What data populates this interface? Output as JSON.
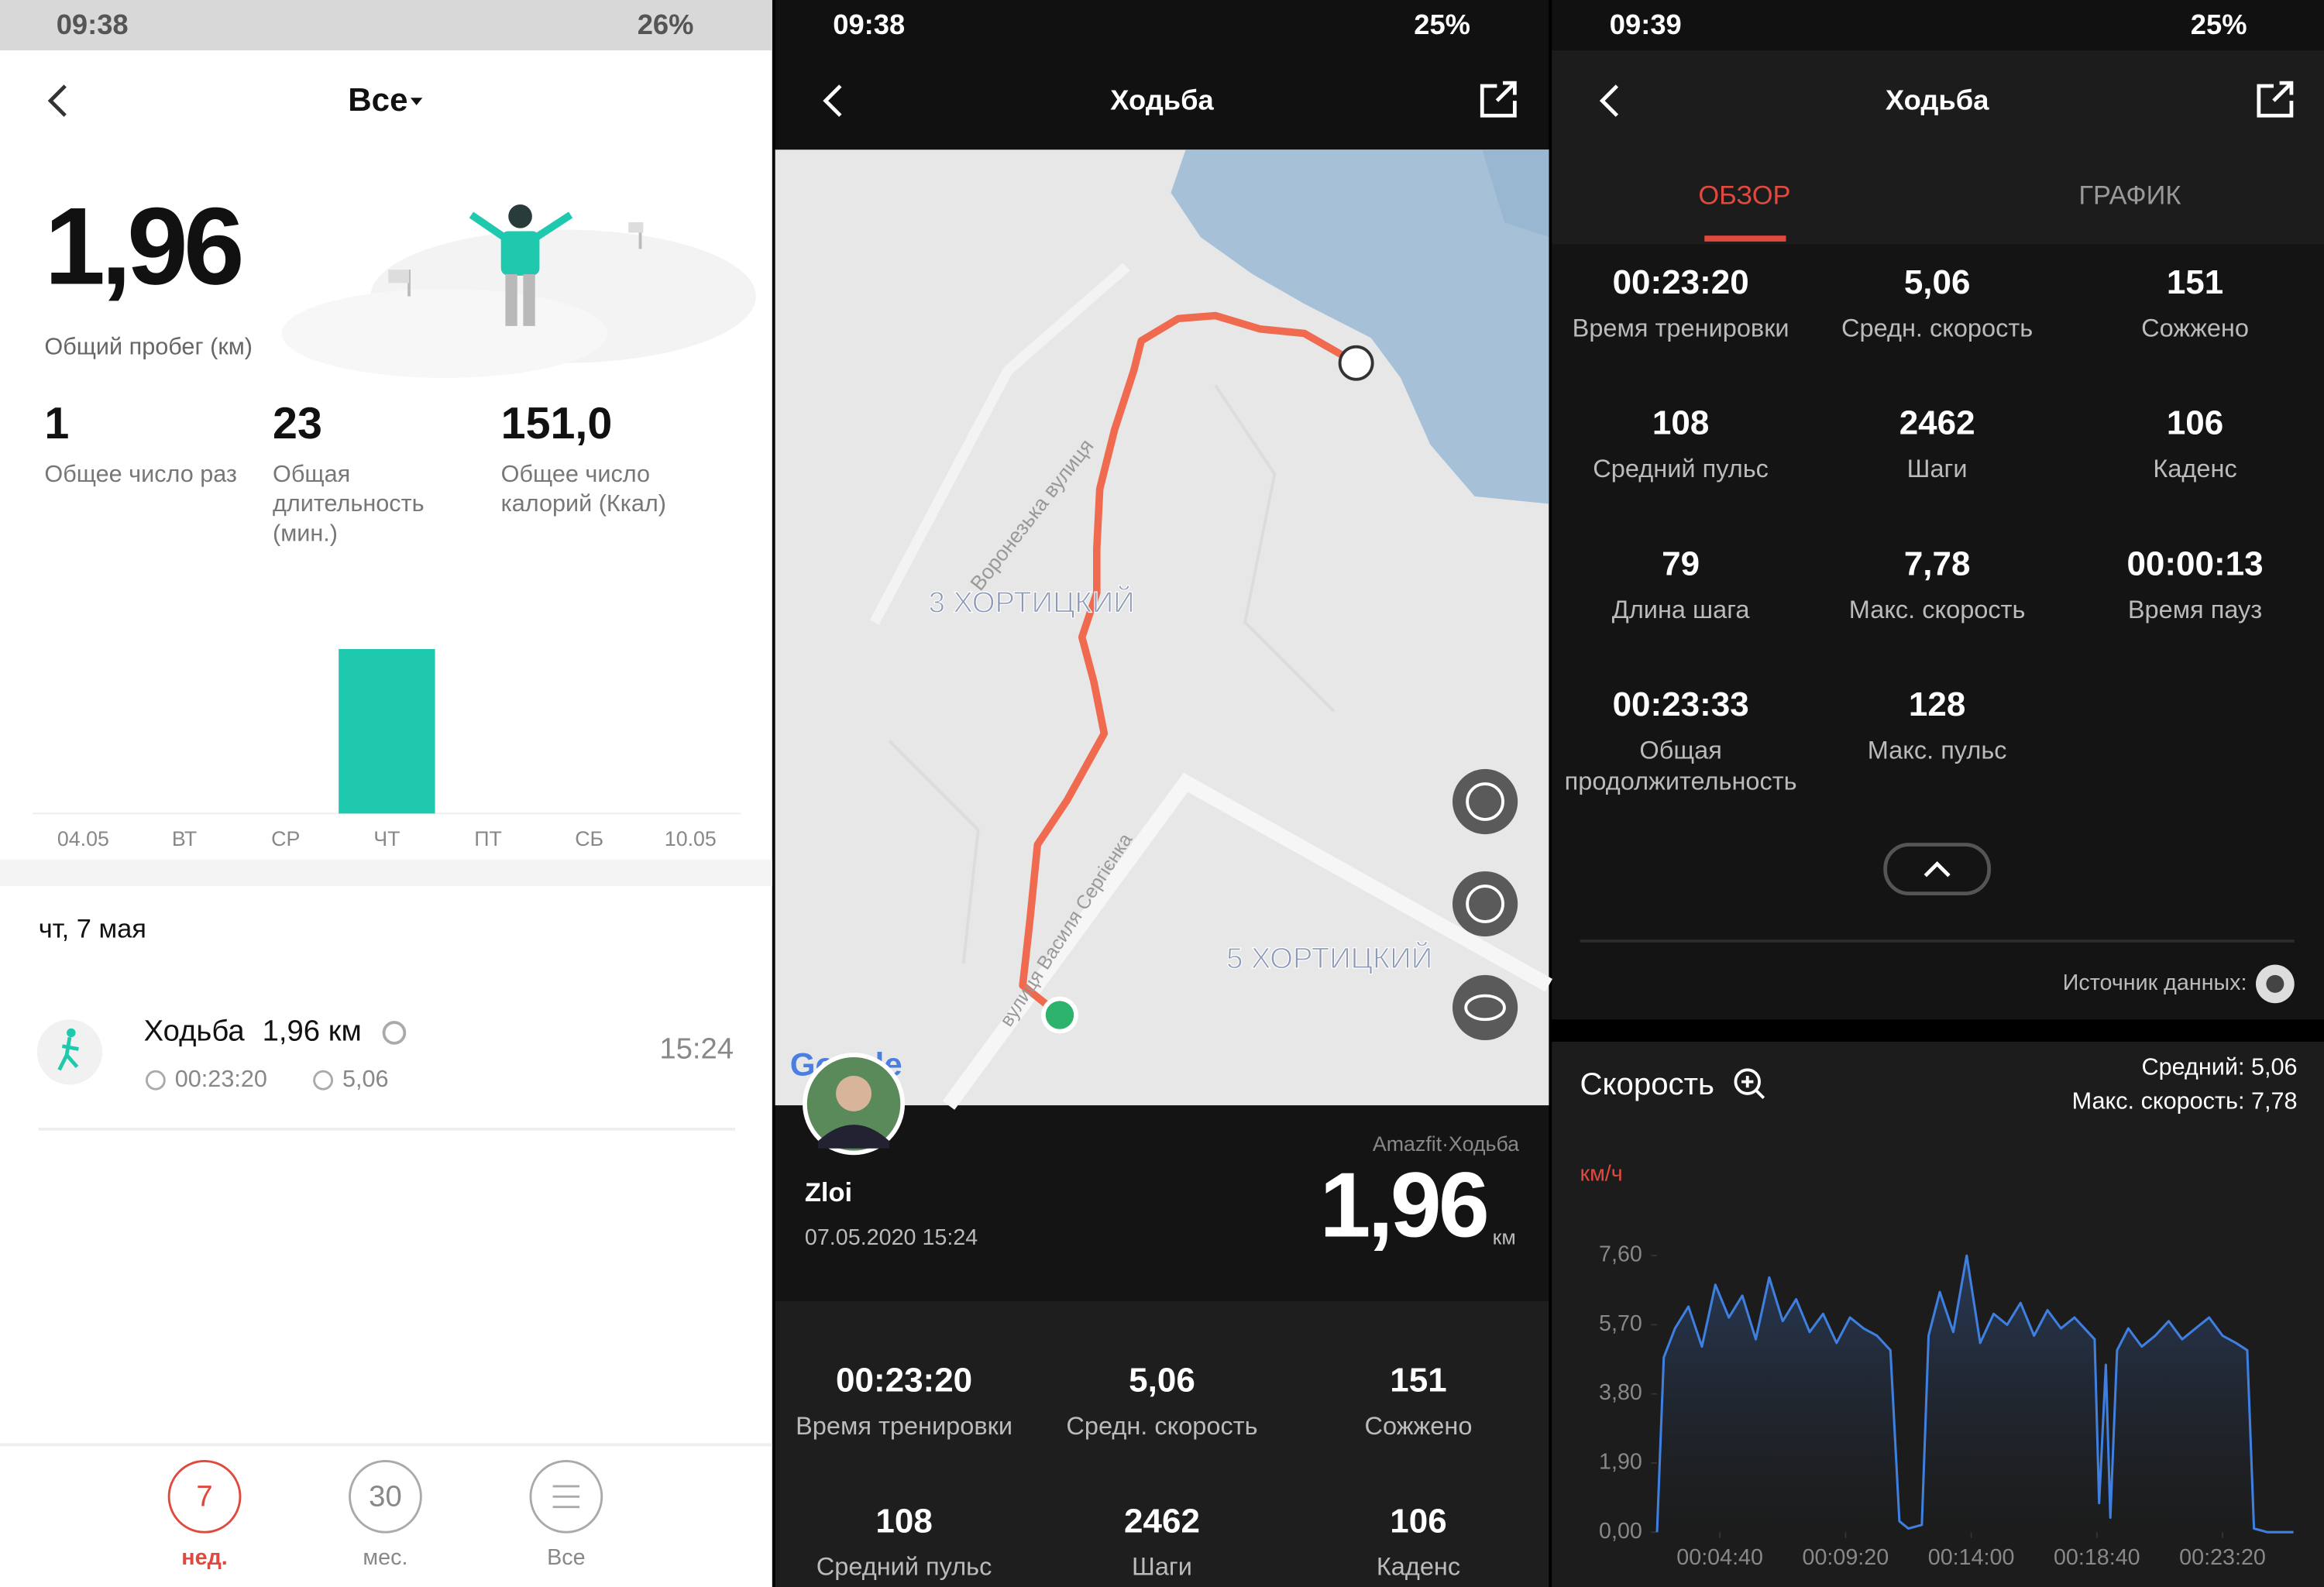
{
  "screens": [
    {
      "status_time": "09:38",
      "battery": "26%",
      "title": "Все",
      "total_value": "1,96",
      "total_label": "Общий пробег (км)",
      "stats": [
        {
          "value": "1",
          "label": "Общее число раз"
        },
        {
          "value": "23",
          "label": "Общая длительность (мин.)"
        },
        {
          "value": "151,0",
          "label": "Общее число калорий (Ккал)"
        }
      ],
      "day": "чт, 7 мая",
      "workout": {
        "name": "Ходьба",
        "distance": "1,96 км",
        "duration": "00:23:20",
        "speed": "5,06",
        "time": "15:24"
      },
      "nav": [
        {
          "icon": "7",
          "label": "нед."
        },
        {
          "icon": "30",
          "label": "мес."
        },
        {
          "label": "Все"
        }
      ]
    },
    {
      "status_time": "09:38",
      "battery": "25%",
      "title": "Ходьба",
      "map_labels": [
        "Воронезька вулиця",
        "3 ХОРТИЦКИЙ",
        "5 ХОРТИЦКИЙ",
        "вулиця Василя Сергієнка"
      ],
      "map_logo": "Google",
      "user": "Zloi",
      "date": "07.05.2020 15:24",
      "device": "Amazfit·Ходьба",
      "distance": "1,96",
      "distance_unit": "км",
      "stats": [
        {
          "value": "00:23:20",
          "label": "Время тренировки"
        },
        {
          "value": "5,06",
          "label": "Средн. скорость"
        },
        {
          "value": "151",
          "label": "Сожжено"
        },
        {
          "value": "108",
          "label": "Средний пульс"
        },
        {
          "value": "2462",
          "label": "Шаги"
        },
        {
          "value": "106",
          "label": "Каденс"
        }
      ]
    },
    {
      "status_time": "09:39",
      "battery": "25%",
      "title": "Ходьба",
      "tabs": [
        "ОБЗОР",
        "ГРАФИК"
      ],
      "stats": [
        {
          "value": "00:23:20",
          "label": "Время тренировки"
        },
        {
          "value": "5,06",
          "label": "Средн. скорость"
        },
        {
          "value": "151",
          "label": "Сожжено"
        },
        {
          "value": "108",
          "label": "Средний пульс"
        },
        {
          "value": "2462",
          "label": "Шаги"
        },
        {
          "value": "106",
          "label": "Каденс"
        },
        {
          "value": "79",
          "label": "Длина шага"
        },
        {
          "value": "7,78",
          "label": "Макс. скорость"
        },
        {
          "value": "00:00:13",
          "label": "Время пауз"
        },
        {
          "value": "00:23:33",
          "label": "Общая продолжительность"
        },
        {
          "value": "128",
          "label": "Макс. пульс"
        }
      ],
      "source": "Источник данных:"
    }
  ],
  "chart_data": [
    {
      "type": "bar",
      "categories": [
        "04.05",
        "ВТ",
        "СР",
        "ЧТ",
        "ПТ",
        "СБ",
        "10.05"
      ],
      "values": [
        0,
        0,
        0,
        1.96,
        0,
        0,
        0
      ],
      "color": "#1ec9ae"
    },
    {
      "type": "line",
      "title": "Скорость",
      "y_label": "км/ч",
      "annotations": [
        "Средний: 5,06",
        "Макс. скорость: 7,78"
      ],
      "color": "#3f7fe0",
      "x": [
        140,
        155,
        180,
        210,
        240,
        270,
        300,
        330,
        360,
        390,
        420,
        450,
        480,
        510,
        540,
        570,
        600,
        630,
        660,
        680,
        700,
        730,
        745,
        770,
        800,
        830,
        860,
        890,
        920,
        950,
        980,
        1010,
        1040,
        1070,
        1100,
        1115,
        1125,
        1140,
        1150,
        1165,
        1190,
        1220,
        1250,
        1280,
        1310,
        1340,
        1370,
        1400,
        1430,
        1455,
        1470,
        1500,
        1530,
        1558
      ],
      "values": [
        0,
        4.8,
        5.6,
        6.2,
        5.1,
        6.8,
        5.9,
        6.5,
        5.3,
        7.0,
        5.8,
        6.4,
        5.5,
        6.0,
        5.2,
        5.9,
        5.6,
        5.4,
        5.0,
        0.3,
        0.1,
        0.2,
        5.4,
        6.6,
        5.5,
        7.6,
        5.2,
        6.0,
        5.7,
        6.3,
        5.4,
        6.1,
        5.6,
        5.9,
        5.5,
        5.3,
        0.8,
        4.6,
        0.4,
        5.0,
        5.6,
        5.1,
        5.4,
        5.8,
        5.3,
        5.6,
        5.9,
        5.4,
        5.2,
        5.0,
        0.1,
        0,
        0,
        0
      ],
      "xlim": [
        140,
        1560
      ],
      "ylim": [
        0,
        7.9
      ],
      "xticks": [
        {
          "value": 280,
          "label": "00:04:40"
        },
        {
          "value": 560,
          "label": "00:09:20"
        },
        {
          "value": 840,
          "label": "00:14:00"
        },
        {
          "value": 1120,
          "label": "00:18:40"
        },
        {
          "value": 1400,
          "label": "00:23:20"
        }
      ],
      "yticks": [
        {
          "value": 0,
          "label": "0,00"
        },
        {
          "value": 1.9,
          "label": "1,90"
        },
        {
          "value": 3.8,
          "label": "3,80"
        },
        {
          "value": 5.7,
          "label": "5,70"
        },
        {
          "value": 7.6,
          "label": "7,60"
        }
      ]
    }
  ]
}
